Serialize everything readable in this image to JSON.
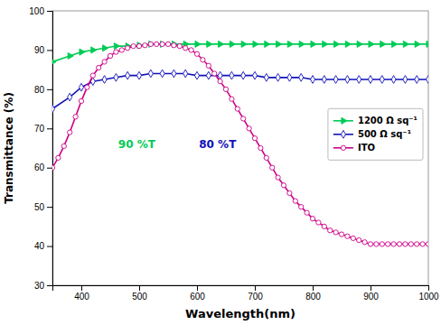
{
  "chart_data": {
    "type": "line",
    "xlabel": "Wavelength(nm)",
    "ylabel": "Transmittance (%)",
    "xlim": [
      350,
      1000
    ],
    "ylim": [
      30,
      100
    ],
    "xticks": [
      400,
      500,
      600,
      700,
      800,
      900,
      1000
    ],
    "yticks": [
      30,
      40,
      50,
      60,
      70,
      80,
      90,
      100
    ],
    "grid": false,
    "legend": "right",
    "series": [
      {
        "name": "1200 Ω sq⁻¹",
        "color": "#00cc55",
        "marker": "triangle-right",
        "x": [
          350,
          380,
          400,
          420,
          440,
          460,
          480,
          500,
          520,
          540,
          560,
          580,
          600,
          620,
          640,
          660,
          680,
          700,
          720,
          740,
          760,
          780,
          800,
          820,
          840,
          860,
          880,
          900,
          920,
          940,
          960,
          980,
          1000
        ],
        "values": [
          87.0,
          88.5,
          89.5,
          90.0,
          90.5,
          91.0,
          91.0,
          91.2,
          91.5,
          91.5,
          91.5,
          91.5,
          91.5,
          91.5,
          91.5,
          91.5,
          91.5,
          91.5,
          91.5,
          91.5,
          91.5,
          91.5,
          91.5,
          91.5,
          91.5,
          91.5,
          91.5,
          91.5,
          91.5,
          91.5,
          91.5,
          91.5,
          91.5
        ]
      },
      {
        "name": "500 Ω sq⁻¹",
        "color": "#1111bb",
        "marker": "diamond",
        "x": [
          350,
          380,
          400,
          420,
          440,
          460,
          480,
          500,
          520,
          540,
          560,
          580,
          600,
          620,
          640,
          660,
          680,
          700,
          720,
          740,
          760,
          780,
          800,
          820,
          840,
          860,
          880,
          900,
          920,
          940,
          960,
          980,
          1000
        ],
        "values": [
          75.0,
          78.0,
          80.5,
          82.0,
          82.5,
          83.0,
          83.5,
          83.5,
          84.0,
          84.0,
          84.0,
          84.0,
          83.5,
          83.5,
          83.5,
          83.5,
          83.5,
          83.5,
          83.0,
          83.0,
          83.0,
          83.0,
          82.5,
          82.5,
          82.5,
          82.5,
          82.5,
          82.5,
          82.5,
          82.5,
          82.5,
          82.5,
          82.5
        ]
      },
      {
        "name": "ITO",
        "color": "#cc0088",
        "marker": "circle",
        "x": [
          350,
          360,
          370,
          380,
          390,
          400,
          410,
          420,
          430,
          440,
          450,
          460,
          470,
          480,
          490,
          500,
          510,
          520,
          530,
          540,
          550,
          560,
          570,
          580,
          590,
          600,
          610,
          620,
          630,
          640,
          650,
          660,
          670,
          680,
          690,
          700,
          710,
          720,
          730,
          740,
          750,
          760,
          770,
          780,
          790,
          800,
          810,
          820,
          830,
          840,
          850,
          860,
          870,
          880,
          890,
          900,
          910,
          920,
          930,
          940,
          950,
          960,
          970,
          980,
          990,
          1000
        ],
        "values": [
          60.0,
          62.5,
          65.5,
          69.0,
          73.0,
          77.0,
          80.5,
          83.5,
          85.5,
          87.0,
          88.5,
          89.5,
          90.0,
          90.5,
          91.0,
          91.0,
          91.2,
          91.5,
          91.5,
          91.5,
          91.5,
          91.2,
          91.0,
          90.5,
          90.0,
          89.0,
          87.5,
          86.0,
          84.0,
          82.0,
          80.0,
          77.5,
          75.0,
          72.5,
          70.0,
          67.5,
          65.0,
          62.5,
          60.0,
          57.5,
          55.5,
          53.5,
          51.5,
          50.0,
          48.5,
          47.0,
          46.0,
          45.0,
          44.0,
          43.5,
          43.0,
          42.5,
          42.0,
          41.5,
          41.0,
          40.5,
          40.5,
          40.5,
          40.5,
          40.5,
          40.5,
          40.5,
          40.5,
          40.5,
          40.5,
          40.5
        ]
      }
    ],
    "annotations": [
      {
        "text": "90 %T",
        "color": "#00cc55"
      },
      {
        "text": "80 %T",
        "color": "#1111bb"
      }
    ]
  }
}
